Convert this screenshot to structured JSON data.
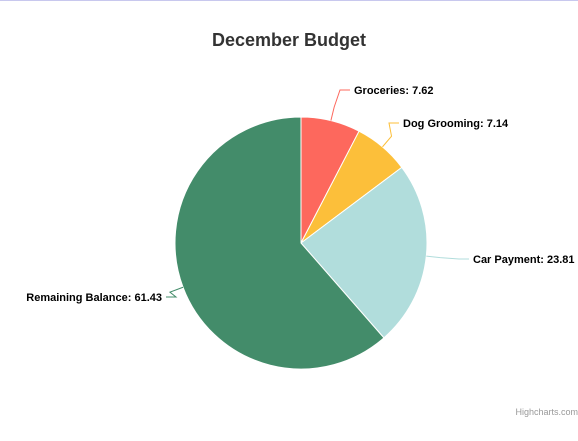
{
  "chart_data": {
    "type": "pie",
    "title": "December Budget",
    "slices": [
      {
        "name": "Groceries",
        "value": 7.62,
        "label": "Groceries: 7.62",
        "color": "#fd685d"
      },
      {
        "name": "Dog Grooming",
        "value": 7.14,
        "label": "Dog Grooming: 7.14",
        "color": "#fcbf3a"
      },
      {
        "name": "Car Payment",
        "value": 23.81,
        "label": "Car Payment: 23.81",
        "color": "#b1dddc"
      },
      {
        "name": "Remaining Balance",
        "value": 61.43,
        "label": "Remaining Balance: 61.43",
        "color": "#438c6a"
      }
    ],
    "start_angle": "12 o'clock, clockwise",
    "legend": "none",
    "data_labels": "outside with connectors"
  },
  "credits": {
    "text": "Highcharts.com"
  }
}
